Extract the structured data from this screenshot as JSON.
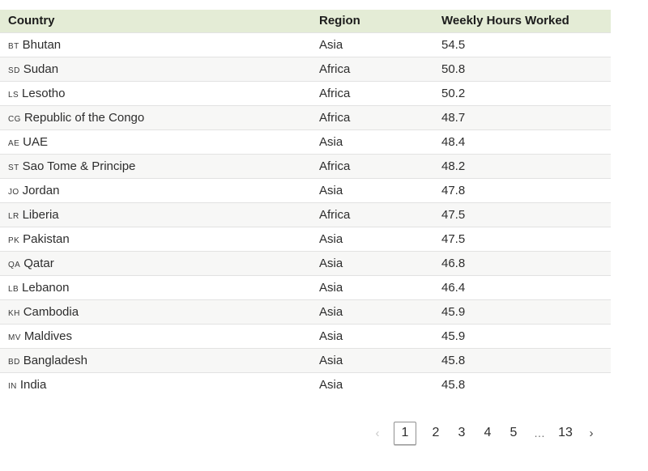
{
  "table": {
    "columns": {
      "country": "Country",
      "region": "Region",
      "hours": "Weekly Hours Worked"
    },
    "rows": [
      {
        "code": "BT",
        "country": "Bhutan",
        "region": "Asia",
        "hours": "54.5"
      },
      {
        "code": "SD",
        "country": "Sudan",
        "region": "Africa",
        "hours": "50.8"
      },
      {
        "code": "LS",
        "country": "Lesotho",
        "region": "Africa",
        "hours": "50.2"
      },
      {
        "code": "CG",
        "country": "Republic of the Congo",
        "region": "Africa",
        "hours": "48.7"
      },
      {
        "code": "AE",
        "country": "UAE",
        "region": "Asia",
        "hours": "48.4"
      },
      {
        "code": "ST",
        "country": "Sao Tome & Principe",
        "region": "Africa",
        "hours": "48.2"
      },
      {
        "code": "JO",
        "country": "Jordan",
        "region": "Asia",
        "hours": "47.8"
      },
      {
        "code": "LR",
        "country": "Liberia",
        "region": "Africa",
        "hours": "47.5"
      },
      {
        "code": "PK",
        "country": "Pakistan",
        "region": "Asia",
        "hours": "47.5"
      },
      {
        "code": "QA",
        "country": "Qatar",
        "region": "Asia",
        "hours": "46.8"
      },
      {
        "code": "LB",
        "country": "Lebanon",
        "region": "Asia",
        "hours": "46.4"
      },
      {
        "code": "KH",
        "country": "Cambodia",
        "region": "Asia",
        "hours": "45.9"
      },
      {
        "code": "MV",
        "country": "Maldives",
        "region": "Asia",
        "hours": "45.9"
      },
      {
        "code": "BD",
        "country": "Bangladesh",
        "region": "Asia",
        "hours": "45.8"
      },
      {
        "code": "IN",
        "country": "India",
        "region": "Asia",
        "hours": "45.8"
      }
    ]
  },
  "pagination": {
    "prev_label": "‹",
    "next_label": "›",
    "current_page": "1",
    "pages": [
      "2",
      "3",
      "4",
      "5"
    ],
    "ellipsis": "…",
    "last_page": "13"
  },
  "colors": {
    "header_bg": "#e4ecd6",
    "row_alt_bg": "#f7f7f6",
    "row_border": "#e2e2e2",
    "text": "#2d2d2d",
    "disabled_chevron": "#c9c9c9"
  }
}
